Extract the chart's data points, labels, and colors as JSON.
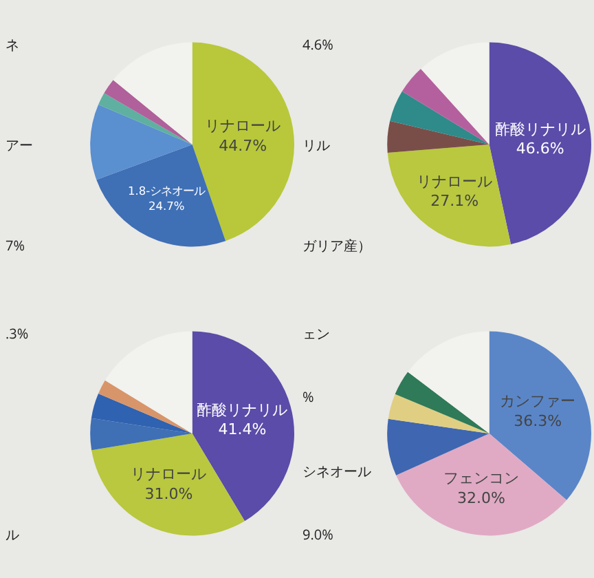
{
  "chart_data": [
    {
      "type": "pie",
      "categories": [
        "リナロール",
        "1.8-シネオール",
        null,
        null,
        null,
        null
      ],
      "values": [
        44.7,
        24.7,
        12,
        2,
        2.5,
        14.1
      ],
      "value_labels": [
        "44.7%",
        "24.7%",
        null,
        null,
        null,
        null
      ],
      "colors": [
        "#b8c83a",
        "#3f6fb5",
        "#5a8fd0",
        "#5fb0a0",
        "#b0609a",
        "#f2f2ee"
      ],
      "annotations": [
        "ネ",
        "アー",
        "7%"
      ]
    },
    {
      "type": "pie",
      "categories": [
        "酢酸リナリル",
        "リナロール",
        null,
        null,
        null,
        null
      ],
      "values": [
        46.6,
        27.1,
        5,
        5,
        4.6,
        11.7
      ],
      "value_labels": [
        "46.6%",
        "27.1%",
        null,
        null,
        null,
        null
      ],
      "colors": [
        "#5a4ca8",
        "#b9c83e",
        "#7a4e48",
        "#2f8a8a",
        "#b5609e",
        "#f2f2ee"
      ],
      "annotations": [
        "4.6%",
        "リル",
        "ガリア産）"
      ]
    },
    {
      "type": "pie",
      "categories": [
        "酢酸リナリル",
        "リナロール",
        null,
        null,
        null,
        null
      ],
      "values": [
        41.4,
        31.0,
        5,
        4,
        2.3,
        16.3
      ],
      "value_labels": [
        "41.4%",
        "31.0%",
        null,
        null,
        null,
        null
      ],
      "colors": [
        "#5a4ca8",
        "#b9c83e",
        "#3f6fb5",
        "#2f62b0",
        "#d8956a",
        "#f2f2ee"
      ],
      "annotations": [
        ".3%",
        "ル"
      ]
    },
    {
      "type": "pie",
      "categories": [
        "カンファー",
        "フェンコン",
        null,
        null,
        null,
        null
      ],
      "values": [
        36.3,
        32.0,
        9.0,
        4,
        4,
        14.7
      ],
      "value_labels": [
        "36.3%",
        "32.0%",
        null,
        null,
        null,
        null
      ],
      "colors": [
        "#5a86c8",
        "#e0aac4",
        "#3f66b0",
        "#e0cf82",
        "#2f7a58",
        "#f2f2ee"
      ],
      "annotations": [
        "ェン",
        "%",
        "シネオール",
        "9.0%"
      ]
    }
  ]
}
